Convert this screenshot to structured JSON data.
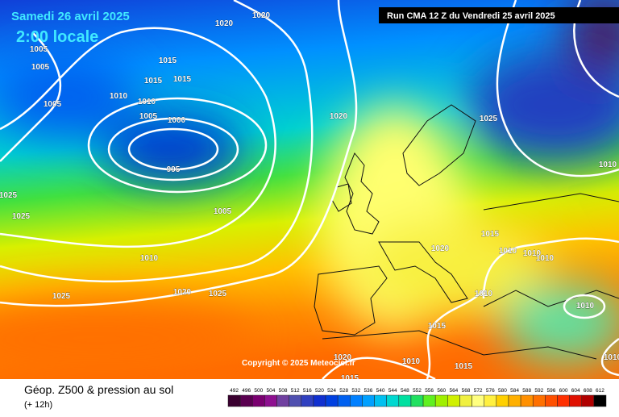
{
  "header": {
    "date": "Samedi 26 avril 2025",
    "time": "2:00 locale",
    "run": "Run CMA 12 Z du Vendredi 25 avril 2025"
  },
  "copyright": "Copyright © 2025 Meteociel.fr",
  "footer": {
    "title": "Géop. Z500 & pression au sol",
    "step": "(+ 12h)"
  },
  "legend": [
    {
      "value": 492,
      "color": "#3a0030"
    },
    {
      "value": 496,
      "color": "#5a0050"
    },
    {
      "value": 500,
      "color": "#7a0070"
    },
    {
      "value": 504,
      "color": "#8e1090"
    },
    {
      "value": 508,
      "color": "#7040a0"
    },
    {
      "value": 512,
      "color": "#5050b0"
    },
    {
      "value": 516,
      "color": "#3040c0"
    },
    {
      "value": 520,
      "color": "#1030d0"
    },
    {
      "value": 524,
      "color": "#0040e0"
    },
    {
      "value": 528,
      "color": "#0060f0"
    },
    {
      "value": 532,
      "color": "#0080ff"
    },
    {
      "value": 536,
      "color": "#00a0ff"
    },
    {
      "value": 540,
      "color": "#00c0f0"
    },
    {
      "value": 544,
      "color": "#00d8d0"
    },
    {
      "value": 548,
      "color": "#00e0a0"
    },
    {
      "value": 552,
      "color": "#20e060"
    },
    {
      "value": 556,
      "color": "#60f020"
    },
    {
      "value": 560,
      "color": "#a0f000"
    },
    {
      "value": 564,
      "color": "#d0f000"
    },
    {
      "value": 568,
      "color": "#f0f040"
    },
    {
      "value": 572,
      "color": "#ffff80"
    },
    {
      "value": 576,
      "color": "#fff040"
    },
    {
      "value": 580,
      "color": "#ffd000"
    },
    {
      "value": 584,
      "color": "#ffb000"
    },
    {
      "value": 588,
      "color": "#ff9000"
    },
    {
      "value": 592,
      "color": "#ff7000"
    },
    {
      "value": 596,
      "color": "#ff5000"
    },
    {
      "value": 600,
      "color": "#ff3000"
    },
    {
      "value": 604,
      "color": "#e01000"
    },
    {
      "value": 608,
      "color": "#b00000"
    },
    {
      "value": 612,
      "color": "#000000"
    }
  ],
  "isobars": [
    1020,
    1020,
    1005,
    1005,
    1015,
    1015,
    1015,
    1010,
    1010,
    1005,
    1005,
    1000,
    995,
    1020,
    1025,
    1010,
    1025,
    1025,
    1005,
    1010,
    1015,
    1020,
    1010,
    1010,
    1010,
    1020,
    1025,
    1025,
    1010,
    1010,
    1015,
    1020,
    1010,
    1015,
    1015,
    1010
  ]
}
